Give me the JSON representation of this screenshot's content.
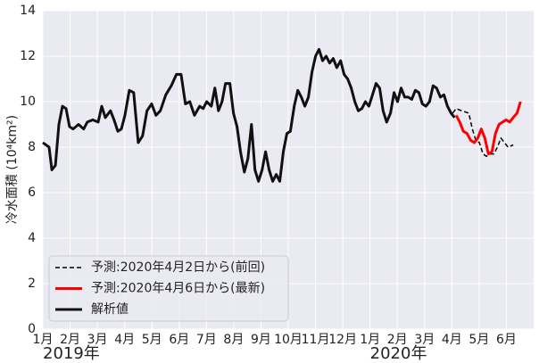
{
  "chart_data": {
    "type": "line",
    "ylabel": "冷水面積 (10⁴km²)",
    "xlim": [
      0,
      18
    ],
    "ylim": [
      0,
      14
    ],
    "yticks": [
      0,
      2,
      4,
      6,
      8,
      10,
      12,
      14
    ],
    "xticks": [
      {
        "value": 0,
        "label": "1月"
      },
      {
        "value": 1,
        "label": "2月"
      },
      {
        "value": 2,
        "label": "3月"
      },
      {
        "value": 3,
        "label": "4月"
      },
      {
        "value": 4,
        "label": "5月"
      },
      {
        "value": 5,
        "label": "6月"
      },
      {
        "value": 6,
        "label": "7月"
      },
      {
        "value": 7,
        "label": "8月"
      },
      {
        "value": 8,
        "label": "9月"
      },
      {
        "value": 9,
        "label": "10月"
      },
      {
        "value": 10,
        "label": "11月"
      },
      {
        "value": 11,
        "label": "12月"
      },
      {
        "value": 12,
        "label": "1月"
      },
      {
        "value": 13,
        "label": "2月"
      },
      {
        "value": 14,
        "label": "3月"
      },
      {
        "value": 15,
        "label": "4月"
      },
      {
        "value": 16,
        "label": "5月"
      },
      {
        "value": 17,
        "label": "6月"
      }
    ],
    "year_labels": [
      {
        "value": 0,
        "label": "2019年"
      },
      {
        "value": 12,
        "label": "2020年"
      }
    ],
    "grid": true,
    "legend": "lower left",
    "series": [
      {
        "name": "予測:2020年4月2日から(前回)",
        "color": "#000000",
        "dash": true,
        "width": 1.5,
        "x": [
          15.03,
          15.16,
          15.36,
          15.62,
          15.75,
          15.88,
          16.01,
          16.14,
          16.27,
          16.41,
          16.54,
          16.67,
          16.8,
          16.93,
          17.06,
          17.25
        ],
        "values": [
          9.5,
          9.7,
          9.6,
          9.5,
          8.8,
          8.3,
          8.2,
          7.7,
          7.6,
          7.7,
          7.7,
          8.0,
          8.4,
          8.2,
          8.0,
          8.1
        ]
      },
      {
        "name": "予測:2020年4月6日から(最新)",
        "color": "#ff0000",
        "dash": false,
        "width": 3,
        "x": [
          15.16,
          15.29,
          15.42,
          15.56,
          15.69,
          15.82,
          15.95,
          16.08,
          16.21,
          16.34,
          16.47,
          16.6,
          16.73,
          16.86,
          16.99,
          17.12,
          17.25,
          17.39,
          17.52
        ],
        "values": [
          9.4,
          9.1,
          8.7,
          8.6,
          8.3,
          8.2,
          8.4,
          8.8,
          8.4,
          7.7,
          7.8,
          8.6,
          9.0,
          9.1,
          9.2,
          9.1,
          9.3,
          9.5,
          10.0
        ]
      },
      {
        "name": "解析値",
        "color": "#111111",
        "dash": false,
        "width": 3,
        "x": [
          0,
          0.23,
          0.33,
          0.46,
          0.59,
          0.72,
          0.85,
          0.98,
          1.11,
          1.31,
          1.5,
          1.63,
          1.83,
          2.03,
          2.16,
          2.29,
          2.48,
          2.61,
          2.75,
          2.88,
          3.01,
          3.17,
          3.33,
          3.5,
          3.66,
          3.82,
          3.99,
          4.15,
          4.31,
          4.51,
          4.71,
          4.9,
          5.07,
          5.23,
          5.39,
          5.56,
          5.75,
          5.88,
          6.01,
          6.18,
          6.31,
          6.44,
          6.57,
          6.7,
          6.86,
          6.99,
          7.12,
          7.25,
          7.39,
          7.52,
          7.65,
          7.78,
          7.91,
          8.04,
          8.17,
          8.3,
          8.43,
          8.56,
          8.69,
          8.82,
          8.95,
          9.08,
          9.22,
          9.35,
          9.48,
          9.61,
          9.74,
          9.87,
          10.0,
          10.13,
          10.26,
          10.39,
          10.52,
          10.65,
          10.78,
          10.92,
          11.05,
          11.18,
          11.31,
          11.44,
          11.57,
          11.7,
          11.83,
          11.96,
          12.09,
          12.22,
          12.35,
          12.48,
          12.61,
          12.75,
          12.88,
          13.01,
          13.14,
          13.27,
          13.4,
          13.53,
          13.66,
          13.79,
          13.92,
          14.05,
          14.18,
          14.31,
          14.44,
          14.58,
          14.71,
          14.84,
          14.97,
          15.1
        ],
        "values": [
          8.2,
          8.0,
          7.0,
          7.2,
          9.0,
          9.8,
          9.7,
          8.9,
          8.8,
          9.0,
          8.8,
          9.1,
          9.2,
          9.1,
          9.8,
          9.3,
          9.6,
          9.2,
          8.7,
          8.8,
          9.4,
          10.5,
          10.4,
          8.2,
          8.5,
          9.6,
          9.9,
          9.4,
          9.6,
          10.3,
          10.7,
          11.2,
          11.2,
          9.9,
          10.0,
          9.4,
          9.8,
          9.7,
          10.0,
          9.8,
          10.6,
          9.6,
          10.0,
          10.8,
          10.8,
          9.5,
          8.9,
          7.8,
          6.9,
          7.5,
          9.0,
          7.0,
          6.5,
          7.0,
          7.8,
          7.0,
          6.5,
          6.8,
          6.5,
          7.8,
          8.6,
          8.7,
          9.8,
          10.5,
          10.2,
          9.8,
          10.2,
          11.3,
          12.0,
          12.3,
          11.8,
          12.0,
          11.7,
          11.9,
          11.5,
          11.8,
          11.2,
          11.0,
          10.6,
          10.0,
          9.6,
          9.7,
          10.0,
          9.8,
          10.3,
          10.8,
          10.6,
          9.6,
          9.1,
          9.5,
          10.4,
          10.0,
          10.6,
          10.2,
          10.2,
          10.1,
          10.5,
          10.4,
          9.9,
          9.8,
          10.0,
          10.7,
          10.6,
          10.2,
          10.3,
          9.8,
          9.5,
          9.3
        ]
      }
    ]
  }
}
